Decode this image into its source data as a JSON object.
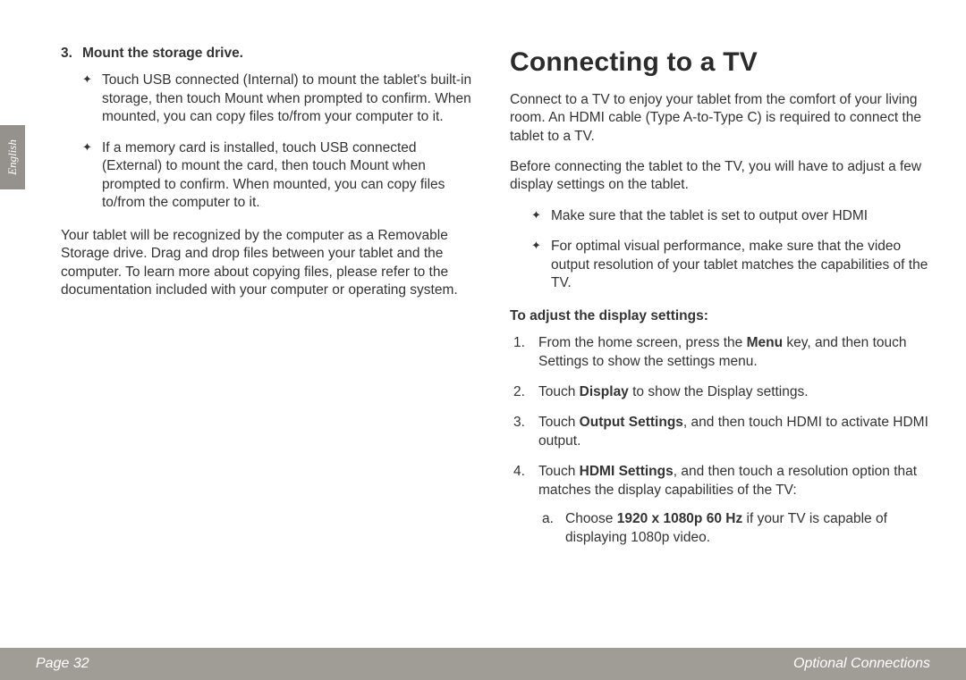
{
  "page": {
    "language_tab": "English",
    "footer_left": "Page 32",
    "footer_right": "Optional Connections",
    "background_color": "#ffffff",
    "footer_bg": "#a09d97",
    "tab_bg": "#95928d",
    "text_color": "#333333"
  },
  "left_column": {
    "step_number": "3.",
    "step_title": "Mount the storage drive.",
    "bullets": [
      "Touch USB connected (Internal) to mount the tablet's built-in storage, then touch Mount when prompted to confirm. When mounted, you can copy files to/from your computer to it.",
      "If a memory card is installed, touch USB connected (External) to mount the card, then touch Mount when prompted to confirm. When mounted, you can copy files to/from the computer to it."
    ],
    "closing_para": "Your tablet will be recognized by the computer as a Removable Storage drive. Drag and drop files between your tablet and the computer. To learn more about copying files, please refer to the documentation included with your computer or operating system."
  },
  "right_column": {
    "title": "Connecting to a TV",
    "intro_paras": [
      "Connect to a TV to enjoy your tablet from the comfort of your living room. An HDMI cable (Type A-to-Type C) is required to connect the tablet to a TV.",
      "Before connecting the tablet to the TV, you will have to adjust a few display settings on the tablet."
    ],
    "bullets": [
      "Make sure that the tablet is set to output over HDMI",
      "For optimal visual performance, make sure that the video output resolution of your tablet matches the capabilities of the TV."
    ],
    "sub_heading": "To adjust the display settings:",
    "steps": [
      {
        "pre": "From the home screen, press the ",
        "bold": "Menu",
        "post": " key, and then touch Settings to show the settings menu."
      },
      {
        "pre": "Touch ",
        "bold": "Display",
        "post": " to show the Display settings."
      },
      {
        "pre": "Touch ",
        "bold": "Output Settings",
        "post": ", and then touch HDMI to activate HDMI output."
      },
      {
        "pre": "Touch ",
        "bold": "HDMI Settings",
        "post": ", and then touch a resolution option that matches the display capabilities of the TV:"
      }
    ],
    "substep": {
      "pre": "Choose ",
      "bold": "1920 x 1080p 60 Hz",
      "post": " if your TV is capable of displaying 1080p video."
    }
  }
}
